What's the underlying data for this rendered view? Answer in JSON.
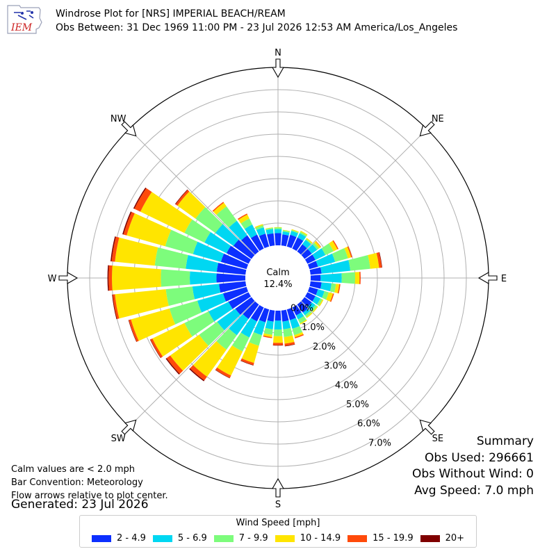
{
  "header": {
    "title": "Windrose Plot for [NRS] IMPERIAL BEACH/REAM",
    "subtitle": "Obs Between: 31 Dec 1969 11:00 PM - 23 Jul 2026 12:53 AM America/Los_Angeles",
    "logo_text": "IEM"
  },
  "notes": {
    "calm_note": "Calm values are < 2.0 mph",
    "bar_convention": "Bar Convention: Meteorology",
    "flow_arrows": "Flow arrows relative to plot center.",
    "generated": "Generated: 23 Jul 2026"
  },
  "summary": {
    "heading": "Summary",
    "obs_used": "Obs Used: 296661",
    "obs_without_wind": "Obs Without Wind: 0",
    "avg_speed": "Avg Speed: 7.0 mph"
  },
  "legend": {
    "title": "Wind Speed [mph]",
    "items": [
      {
        "label": "2 - 4.9",
        "color": "#0c2fff"
      },
      {
        "label": "5 - 6.9",
        "color": "#00d7f2"
      },
      {
        "label": "7 - 9.9",
        "color": "#7dfc7c"
      },
      {
        "label": "10 - 14.9",
        "color": "#ffe500"
      },
      {
        "label": "15 - 19.9",
        "color": "#ff4a0a"
      },
      {
        "label": "20+",
        "color": "#7f0000"
      }
    ]
  },
  "chart_data": {
    "type": "windrose",
    "calm_label": "Calm",
    "calm_value": "12.4%",
    "directions": [
      "N",
      "NE",
      "E",
      "SE",
      "S",
      "SW",
      "W",
      "NW"
    ],
    "radial_ticks": [
      "0.0%",
      "1.0%",
      "2.0%",
      "3.0%",
      "4.0%",
      "5.0%",
      "6.0%",
      "7.0%"
    ],
    "rmax": 8.0,
    "speed_bins": [
      "2 - 4.9",
      "5 - 6.9",
      "7 - 9.9",
      "10 - 14.9",
      "15 - 19.9",
      "20+"
    ],
    "sectors": [
      {
        "dir": 0.0,
        "values": [
          0.55,
          0.18,
          0.07,
          0.02,
          0.0,
          0.0
        ]
      },
      {
        "dir": 10.0,
        "values": [
          0.5,
          0.13,
          0.06,
          0.02,
          0.0,
          0.0
        ]
      },
      {
        "dir": 20.0,
        "values": [
          0.55,
          0.18,
          0.05,
          0.03,
          0.0,
          0.0
        ]
      },
      {
        "dir": 30.0,
        "values": [
          0.55,
          0.22,
          0.07,
          0.05,
          0.0,
          0.0
        ]
      },
      {
        "dir": 40.0,
        "values": [
          0.4,
          0.25,
          0.05,
          0.05,
          0.0,
          0.0
        ]
      },
      {
        "dir": 50.0,
        "values": [
          0.4,
          0.3,
          0.1,
          0.1,
          0.02,
          0.0
        ]
      },
      {
        "dir": 60.0,
        "values": [
          0.4,
          0.5,
          0.4,
          0.2,
          0.05,
          0.0
        ]
      },
      {
        "dir": 70.0,
        "values": [
          0.4,
          0.8,
          0.6,
          0.15,
          0.05,
          0.0
        ]
      },
      {
        "dir": 80.0,
        "values": [
          0.5,
          1.3,
          0.9,
          0.4,
          0.12,
          0.02
        ]
      },
      {
        "dir": 90.0,
        "values": [
          0.45,
          0.95,
          0.6,
          0.2,
          0.05,
          0.0
        ]
      },
      {
        "dir": 100.0,
        "values": [
          0.5,
          0.45,
          0.2,
          0.15,
          0.05,
          0.0
        ]
      },
      {
        "dir": 110.0,
        "values": [
          0.4,
          0.3,
          0.2,
          0.2,
          0.05,
          0.0
        ]
      },
      {
        "dir": 120.0,
        "values": [
          0.4,
          0.25,
          0.1,
          0.05,
          0.0,
          0.0
        ]
      },
      {
        "dir": 130.0,
        "values": [
          0.4,
          0.2,
          0.1,
          0.05,
          0.0,
          0.0
        ]
      },
      {
        "dir": 140.0,
        "values": [
          0.45,
          0.15,
          0.1,
          0.05,
          0.0,
          0.0
        ]
      },
      {
        "dir": 150.0,
        "values": [
          0.4,
          0.2,
          0.2,
          0.05,
          0.0,
          0.0
        ]
      },
      {
        "dir": 160.0,
        "values": [
          0.5,
          0.4,
          0.3,
          0.1,
          0.05,
          0.0
        ]
      },
      {
        "dir": 170.0,
        "values": [
          0.5,
          0.35,
          0.35,
          0.3,
          0.1,
          0.02
        ]
      },
      {
        "dir": 180.0,
        "values": [
          0.45,
          0.4,
          0.3,
          0.3,
          0.1,
          0.02
        ]
      },
      {
        "dir": 190.0,
        "values": [
          0.5,
          0.35,
          0.25,
          0.1,
          0.05,
          0.0
        ]
      },
      {
        "dir": 200.0,
        "values": [
          0.6,
          0.6,
          0.5,
          0.8,
          0.1,
          0.02
        ]
      },
      {
        "dir": 210.0,
        "values": [
          0.7,
          0.8,
          0.7,
          1.2,
          0.12,
          0.02
        ]
      },
      {
        "dir": 220.0,
        "values": [
          0.8,
          0.9,
          0.8,
          1.5,
          0.2,
          0.05
        ]
      },
      {
        "dir": 230.0,
        "values": [
          0.9,
          1.0,
          1.0,
          1.6,
          0.2,
          0.05
        ]
      },
      {
        "dir": 240.0,
        "values": [
          1.0,
          1.0,
          1.2,
          1.6,
          0.1,
          0.02
        ]
      },
      {
        "dir": 250.0,
        "values": [
          1.1,
          1.2,
          1.3,
          1.8,
          0.1,
          0.02
        ]
      },
      {
        "dir": 260.0,
        "values": [
          1.2,
          1.2,
          1.2,
          2.3,
          0.1,
          0.03
        ]
      },
      {
        "dir": 270.0,
        "values": [
          1.3,
          1.2,
          1.3,
          2.2,
          0.15,
          0.05
        ]
      },
      {
        "dir": 280.0,
        "values": [
          1.3,
          1.4,
          1.4,
          1.8,
          0.15,
          0.05
        ]
      },
      {
        "dir": 290.0,
        "values": [
          1.2,
          1.3,
          1.3,
          1.8,
          0.15,
          0.05
        ]
      },
      {
        "dir": 300.0,
        "values": [
          1.1,
          1.1,
          1.0,
          2.2,
          0.3,
          0.05
        ]
      },
      {
        "dir": 310.0,
        "values": [
          1.0,
          1.0,
          1.1,
          1.0,
          0.1,
          0.03
        ]
      },
      {
        "dir": 320.0,
        "values": [
          0.9,
          0.8,
          0.8,
          0.2,
          0.05,
          0.0
        ]
      },
      {
        "dir": 330.0,
        "values": [
          0.7,
          0.5,
          0.3,
          0.2,
          0.05,
          0.0
        ]
      },
      {
        "dir": 340.0,
        "values": [
          0.6,
          0.3,
          0.1,
          0.05,
          0.0,
          0.0
        ]
      },
      {
        "dir": 350.0,
        "values": [
          0.55,
          0.2,
          0.05,
          0.02,
          0.0,
          0.0
        ]
      }
    ]
  }
}
